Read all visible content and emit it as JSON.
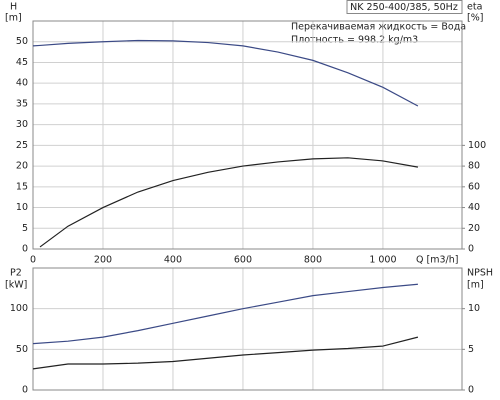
{
  "chart_data": [
    {
      "type": "line",
      "title": "NK 250-400/385, 50Hz",
      "annotations": [
        "Перекачиваемая жидкость = Вода",
        "Плотность = 998.2 kg/m3"
      ],
      "y_label": "H",
      "y_unit": "[m]",
      "y2_label": "eta",
      "y2_unit": "[%]",
      "x_label": "Q [m3/h]",
      "x": [
        0,
        20,
        100,
        200,
        300,
        400,
        500,
        600,
        700,
        800,
        900,
        1000,
        1100
      ],
      "series": [
        {
          "name": "H",
          "color": "#3b4a86",
          "values": [
            49,
            49.1,
            49.6,
            50,
            50.3,
            50.2,
            49.8,
            49,
            47.5,
            45.5,
            42.5,
            39,
            34.5
          ]
        },
        {
          "name": "eta",
          "color": "#222222",
          "axis": "y2",
          "values": [
            null,
            2,
            22,
            40,
            55,
            66,
            74,
            80,
            84,
            87,
            88,
            85,
            79
          ]
        }
      ],
      "xlim": [
        0,
        1226
      ],
      "xticks": [
        0,
        200,
        400,
        600,
        800,
        {
          "value": 1000,
          "label": "1 000"
        }
      ],
      "ylim": [
        0,
        55
      ],
      "yticks": [
        0,
        5,
        10,
        15,
        20,
        25,
        30,
        35,
        40,
        45,
        50
      ],
      "y2lim": [
        0,
        220
      ],
      "y2ticks": [
        0,
        20,
        40,
        60,
        80,
        100
      ],
      "grid": true
    },
    {
      "type": "line",
      "y_label": "P2",
      "y_unit": "[kW]",
      "y2_label": "NPSH",
      "y2_unit": "[m]",
      "x": [
        0,
        100,
        200,
        300,
        400,
        500,
        600,
        700,
        800,
        900,
        1000,
        1100
      ],
      "series": [
        {
          "name": "P2",
          "color": "#3b4a86",
          "values": [
            57,
            60,
            65,
            73,
            82,
            91,
            100,
            108,
            116,
            121,
            126,
            130
          ]
        },
        {
          "name": "NPSH",
          "color": "#222222",
          "axis": "y2",
          "values": [
            2.6,
            3.2,
            3.2,
            3.3,
            3.5,
            3.9,
            4.3,
            4.6,
            4.9,
            5.1,
            5.4,
            6.5
          ]
        }
      ],
      "xlim": [
        0,
        1226
      ],
      "ylim": [
        0,
        150
      ],
      "yticks": [
        0,
        50,
        100
      ],
      "y2lim": [
        0,
        15
      ],
      "y2ticks": [
        0,
        5,
        10
      ],
      "grid": true
    }
  ]
}
